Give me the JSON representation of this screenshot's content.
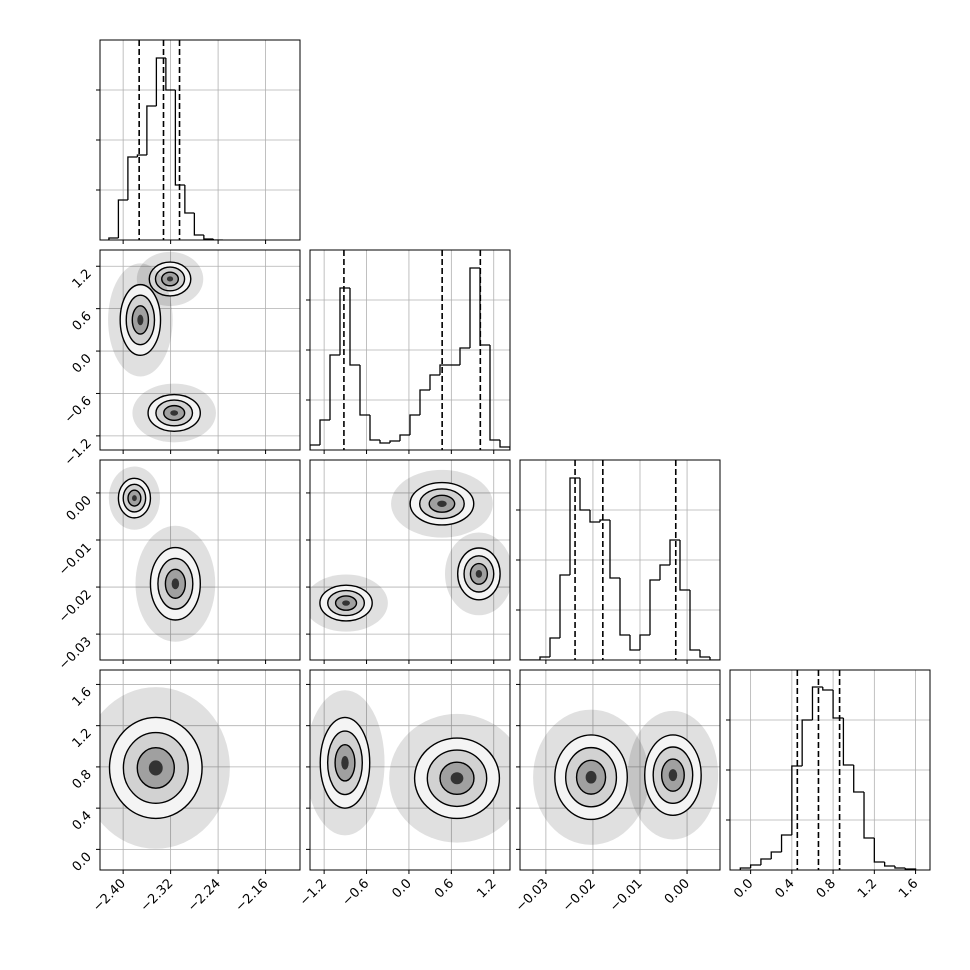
{
  "chart_data": [
    {
      "type": "histogram",
      "color": "#000000",
      "grid": true,
      "xlim": [
        -2.439,
        -2.102
      ],
      "xticks": [
        -2.4,
        -2.32,
        -2.24,
        -2.16
      ],
      "ylim": [
        0,
        200
      ],
      "yticks": [
        50,
        100,
        150
      ],
      "bins": [
        -2.424,
        -2.408,
        -2.392,
        -2.376,
        -2.36,
        -2.344,
        -2.328,
        -2.312,
        -2.296,
        -2.28,
        -2.264,
        -2.248,
        -2.232
      ],
      "values": [
        2,
        40,
        83,
        85,
        134,
        182,
        150,
        55,
        27,
        5,
        1,
        0
      ],
      "quantiles": [
        -2.373,
        -2.332,
        -2.305
      ]
    },
    {
      "type": "contour",
      "color": "#000000",
      "grid": true,
      "xlim": [
        -2.439,
        -2.102
      ],
      "xticks": [
        -2.4,
        -2.32,
        -2.24,
        -2.16
      ],
      "ylim": [
        -1.4,
        1.43
      ],
      "yticks": [
        {
          "value": -1.2,
          "label": "−1.2"
        },
        {
          "value": -0.6,
          "label": "−0.6"
        },
        {
          "value": 0,
          "label": "0.0"
        },
        0.6,
        1.2
      ],
      "blobs": [
        {
          "x": -2.321,
          "y": 1.02,
          "sx": 0.035,
          "sy": 0.24
        },
        {
          "x": -2.371,
          "y": 0.44,
          "sx": 0.034,
          "sy": 0.5
        },
        {
          "x": -2.314,
          "y": -0.876,
          "sx": 0.044,
          "sy": 0.26
        }
      ]
    },
    {
      "type": "histogram",
      "color": "#000000",
      "grid": true,
      "xlim": [
        -1.4,
        1.43
      ],
      "xticks": [
        -1.2,
        -0.6,
        0,
        0.6,
        1.2
      ],
      "ylim": [
        0,
        200
      ],
      "yticks": [
        50,
        100,
        150
      ],
      "bins": [
        -1.4,
        -1.2585,
        -1.117,
        -0.9755,
        -0.834,
        -0.6925,
        -0.551,
        -0.4095,
        -0.268,
        -0.1265,
        0.015,
        0.1565,
        0.298,
        0.4395,
        0.581,
        0.7225,
        0.864,
        1.0055,
        1.147,
        1.2885,
        1.43
      ],
      "values": [
        5,
        30,
        95,
        162,
        85,
        35,
        10,
        7,
        9,
        15,
        35,
        60,
        75,
        85,
        85,
        102,
        182,
        105,
        10,
        3
      ],
      "quantiles": [
        -0.92,
        0.47,
        1.01
      ]
    },
    {
      "type": "contour",
      "color": "#000000",
      "grid": true,
      "xlim": [
        -2.439,
        -2.102
      ],
      "xticks": [
        -2.4,
        -2.32,
        -2.24,
        -2.16
      ],
      "ylim": [
        -0.0355,
        0.007
      ],
      "yticks": [
        {
          "value": -0.03,
          "label": "−0.03"
        },
        {
          "value": -0.02,
          "label": "−0.02"
        },
        {
          "value": -0.01,
          "label": "−0.01"
        },
        {
          "value": 0,
          "label": "0.00"
        }
      ],
      "blobs": [
        {
          "x": -2.381,
          "y": -0.0011,
          "sx": 0.027,
          "sy": 0.0042
        },
        {
          "x": -2.312,
          "y": -0.0193,
          "sx": 0.042,
          "sy": 0.0077
        }
      ]
    },
    {
      "type": "contour",
      "color": "#000000",
      "grid": true,
      "xlim": [
        -1.4,
        1.43
      ],
      "xticks": [
        -1.2,
        -0.6,
        0,
        0.6,
        1.2
      ],
      "ylim": [
        -0.0355,
        0.007
      ],
      "yticks": [
        -0.03,
        -0.02,
        -0.01,
        0
      ],
      "blobs": [
        {
          "x": 0.467,
          "y": -0.0023,
          "sx": 0.45,
          "sy": 0.0045
        },
        {
          "x": 0.99,
          "y": -0.0172,
          "sx": 0.3,
          "sy": 0.0055
        },
        {
          "x": -0.89,
          "y": -0.0234,
          "sx": 0.37,
          "sy": 0.0038
        }
      ]
    },
    {
      "type": "histogram",
      "color": "#000000",
      "grid": true,
      "xlim": [
        -0.0355,
        0.007
      ],
      "xticks": [
        -0.03,
        -0.02,
        -0.01,
        0
      ],
      "ylim": [
        0,
        200
      ],
      "yticks": [
        50,
        100,
        150
      ],
      "bins": [
        -0.0355,
        -0.033375,
        -0.03125,
        -0.029125,
        -0.027,
        -0.024875,
        -0.02275,
        -0.020625,
        -0.0185,
        -0.016375,
        -0.01425,
        -0.012125,
        -0.01,
        -0.007875,
        -0.00575,
        -0.003625,
        -0.0015,
        0.000625,
        0.00275,
        0.004875,
        0.007
      ],
      "values": [
        0,
        0,
        3,
        22,
        85,
        182,
        150,
        138,
        140,
        82,
        25,
        10,
        25,
        80,
        95,
        120,
        70,
        10,
        3,
        0
      ],
      "quantiles": [
        -0.0238,
        -0.0179,
        -0.0024
      ]
    },
    {
      "type": "contour",
      "color": "#000000",
      "grid": true,
      "xlim": [
        -2.439,
        -2.102
      ],
      "xticks": [
        {
          "value": -2.4,
          "label": "−2.40"
        },
        {
          "value": -2.32,
          "label": "−2.32"
        },
        {
          "value": -2.24,
          "label": "−2.24"
        },
        {
          "value": -2.16,
          "label": "−2.16"
        }
      ],
      "ylim": [
        -0.2,
        1.74
      ],
      "yticks": [
        {
          "value": 0,
          "label": "0.0"
        },
        0.4,
        0.8,
        1.2,
        1.6
      ],
      "blobs": [
        {
          "x": -2.345,
          "y": 0.79,
          "sx": 0.078,
          "sy": 0.49
        }
      ]
    },
    {
      "type": "contour",
      "color": "#000000",
      "grid": true,
      "xlim": [
        -1.4,
        1.43
      ],
      "xticks": [
        {
          "value": -1.2,
          "label": "−1.2"
        },
        {
          "value": -0.6,
          "label": "−0.6"
        },
        {
          "value": 0,
          "label": "0.0"
        },
        0.6,
        1.2
      ],
      "ylim": [
        -0.2,
        1.74
      ],
      "yticks": [
        0,
        0.4,
        0.8,
        1.2,
        1.6
      ],
      "blobs": [
        {
          "x": -0.905,
          "y": 0.84,
          "sx": 0.35,
          "sy": 0.44
        },
        {
          "x": 0.68,
          "y": 0.69,
          "sx": 0.6,
          "sy": 0.39
        }
      ]
    },
    {
      "type": "contour",
      "color": "#000000",
      "grid": true,
      "xlim": [
        -0.0355,
        0.007
      ],
      "xticks": [
        {
          "value": -0.03,
          "label": "−0.03"
        },
        {
          "value": -0.02,
          "label": "−0.02"
        },
        {
          "value": -0.01,
          "label": "−0.01"
        },
        {
          "value": 0,
          "label": "0.00"
        }
      ],
      "ylim": [
        -0.2,
        1.74
      ],
      "yticks": [
        0,
        0.4,
        0.8,
        1.2,
        1.6
      ],
      "blobs": [
        {
          "x": -0.0204,
          "y": 0.7,
          "sx": 0.0077,
          "sy": 0.41
        },
        {
          "x": -0.003,
          "y": 0.72,
          "sx": 0.006,
          "sy": 0.39
        }
      ]
    },
    {
      "type": "histogram",
      "color": "#000000",
      "grid": true,
      "xlim": [
        -0.2,
        1.74
      ],
      "xticks": [
        {
          "value": 0,
          "label": "0.0"
        },
        0.4,
        0.8,
        1.2,
        1.6
      ],
      "ylim": [
        0,
        200
      ],
      "yticks": [
        50,
        100,
        150
      ],
      "bins": [
        -0.1,
        0,
        0.1,
        0.2,
        0.3,
        0.4,
        0.5,
        0.6,
        0.7,
        0.8,
        0.9,
        1.0,
        1.1,
        1.2,
        1.3,
        1.4,
        1.5,
        1.6
      ],
      "values": [
        2,
        5,
        11,
        18,
        35,
        104,
        150,
        183,
        180,
        152,
        105,
        78,
        32,
        8,
        4,
        2,
        1
      ],
      "quantiles": [
        0.453,
        0.658,
        0.863
      ]
    }
  ]
}
